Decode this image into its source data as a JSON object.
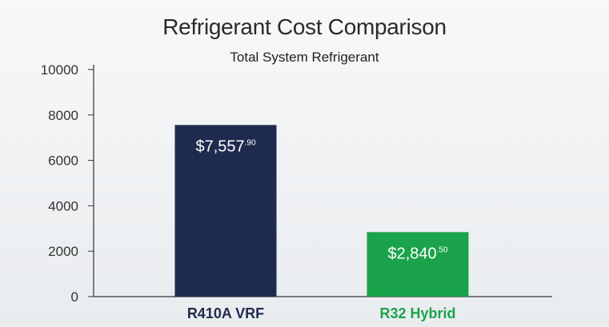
{
  "chart_data": {
    "type": "bar",
    "title": "Refrigerant Cost Comparison",
    "subtitle": "Total System Refrigerant",
    "xlabel": "",
    "ylabel": "",
    "ylim": [
      0,
      10000
    ],
    "yticks": [
      0,
      2000,
      4000,
      6000,
      8000,
      10000
    ],
    "grid": false,
    "categories": [
      "R410A VRF",
      "R32 Hybrid"
    ],
    "values": [
      7557.9,
      2840.5
    ],
    "data_labels": [
      {
        "main": "$7,557",
        "sup": ".90"
      },
      {
        "main": "$2,840",
        "sup": ".50"
      }
    ],
    "colors": [
      "#1f2b4e",
      "#1aa34a"
    ],
    "label_colors": [
      "#1f2b4e",
      "#1aa34a"
    ]
  }
}
